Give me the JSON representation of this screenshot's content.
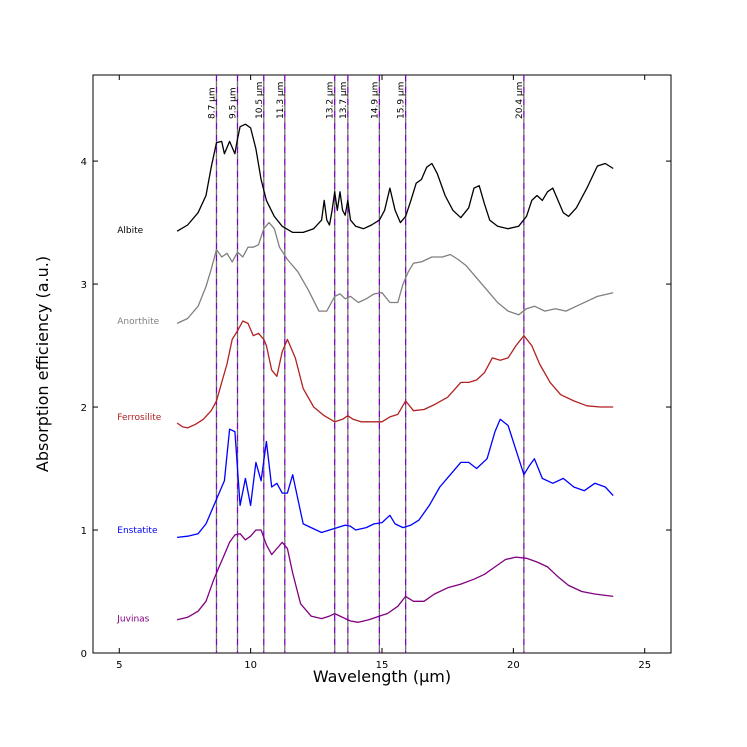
{
  "chart_data": {
    "type": "line",
    "title": "",
    "xlabel": "Wavelength (μm)",
    "ylabel": "Absorption efficiency (a.u.)",
    "xlim": [
      4,
      26
    ],
    "ylim": [
      0,
      4.7
    ],
    "x_ticks": [
      5,
      10,
      15,
      20,
      25
    ],
    "y_ticks": [
      0,
      1,
      2,
      3,
      4
    ],
    "grid": false,
    "legend": "none",
    "series_labels_position": "inline-left",
    "vertical_lines": [
      {
        "x": 8.7,
        "label": "8.7 μm"
      },
      {
        "x": 9.5,
        "label": "9.5 μm"
      },
      {
        "x": 10.5,
        "label": "10.5 μm"
      },
      {
        "x": 11.3,
        "label": "11.3 μm"
      },
      {
        "x": 13.2,
        "label": "13.2 μm"
      },
      {
        "x": 13.7,
        "label": "13.7 μm"
      },
      {
        "x": 14.9,
        "label": "14.9 μm"
      },
      {
        "x": 15.9,
        "label": "15.9 μm"
      },
      {
        "x": 20.4,
        "label": "20.4 μm"
      }
    ],
    "vertical_line_colors": [
      "#7f00bf",
      "#000000"
    ],
    "series": [
      {
        "name": "Albite",
        "color": "#000000",
        "label_x": 5,
        "label_y": 3.44,
        "x": [
          7.2,
          7.6,
          8.0,
          8.3,
          8.5,
          8.7,
          8.9,
          9.0,
          9.2,
          9.4,
          9.5,
          9.6,
          9.8,
          10.0,
          10.2,
          10.4,
          10.6,
          10.9,
          11.2,
          11.6,
          12.0,
          12.4,
          12.7,
          12.8,
          12.9,
          13.0,
          13.1,
          13.2,
          13.3,
          13.4,
          13.5,
          13.6,
          13.7,
          13.8,
          14.0,
          14.3,
          14.6,
          14.9,
          15.1,
          15.3,
          15.5,
          15.7,
          15.9,
          16.1,
          16.3,
          16.5,
          16.7,
          16.9,
          17.1,
          17.4,
          17.7,
          18.0,
          18.3,
          18.5,
          18.7,
          18.9,
          19.1,
          19.4,
          19.8,
          20.2,
          20.5,
          20.7,
          20.9,
          21.1,
          21.3,
          21.5,
          21.7,
          21.9,
          22.1,
          22.4,
          22.8,
          23.2,
          23.5,
          23.8
        ],
        "y": [
          3.43,
          3.48,
          3.58,
          3.72,
          3.95,
          4.15,
          4.16,
          4.06,
          4.16,
          4.06,
          4.18,
          4.28,
          4.3,
          4.27,
          4.1,
          3.85,
          3.68,
          3.55,
          3.47,
          3.42,
          3.42,
          3.45,
          3.52,
          3.68,
          3.52,
          3.48,
          3.6,
          3.75,
          3.6,
          3.75,
          3.6,
          3.56,
          3.68,
          3.52,
          3.47,
          3.45,
          3.48,
          3.52,
          3.6,
          3.78,
          3.6,
          3.5,
          3.55,
          3.68,
          3.82,
          3.85,
          3.95,
          3.98,
          3.9,
          3.72,
          3.6,
          3.54,
          3.62,
          3.78,
          3.8,
          3.65,
          3.52,
          3.47,
          3.45,
          3.47,
          3.55,
          3.68,
          3.72,
          3.68,
          3.75,
          3.78,
          3.68,
          3.58,
          3.55,
          3.62,
          3.78,
          3.96,
          3.98,
          3.94
        ]
      },
      {
        "name": "Anorthite",
        "color": "#808080",
        "label_x": 5,
        "label_y": 2.7,
        "x": [
          7.2,
          7.6,
          8.0,
          8.3,
          8.5,
          8.7,
          8.9,
          9.1,
          9.3,
          9.5,
          9.7,
          9.9,
          10.1,
          10.3,
          10.5,
          10.7,
          10.9,
          11.1,
          11.4,
          11.8,
          12.2,
          12.6,
          12.9,
          13.2,
          13.4,
          13.6,
          13.8,
          14.1,
          14.4,
          14.7,
          15.0,
          15.3,
          15.6,
          15.8,
          16.0,
          16.2,
          16.5,
          16.9,
          17.3,
          17.6,
          17.9,
          18.2,
          18.6,
          19.0,
          19.4,
          19.8,
          20.2,
          20.5,
          20.8,
          21.2,
          21.6,
          22.0,
          22.4,
          22.8,
          23.2,
          23.8
        ],
        "y": [
          2.68,
          2.72,
          2.82,
          2.98,
          3.12,
          3.28,
          3.22,
          3.25,
          3.18,
          3.26,
          3.22,
          3.3,
          3.3,
          3.32,
          3.45,
          3.5,
          3.45,
          3.3,
          3.2,
          3.1,
          2.95,
          2.78,
          2.78,
          2.9,
          2.92,
          2.88,
          2.9,
          2.85,
          2.88,
          2.92,
          2.93,
          2.85,
          2.85,
          3.0,
          3.1,
          3.17,
          3.18,
          3.22,
          3.22,
          3.24,
          3.2,
          3.15,
          3.05,
          2.95,
          2.85,
          2.78,
          2.75,
          2.8,
          2.82,
          2.78,
          2.8,
          2.78,
          2.82,
          2.86,
          2.9,
          2.93
        ]
      },
      {
        "name": "Ferrosilite",
        "color": "#b22222",
        "label_x": 5,
        "label_y": 1.92,
        "x": [
          7.2,
          7.4,
          7.6,
          7.9,
          8.2,
          8.5,
          8.7,
          8.9,
          9.1,
          9.3,
          9.5,
          9.7,
          9.9,
          10.1,
          10.3,
          10.5,
          10.6,
          10.8,
          11.0,
          11.2,
          11.4,
          11.7,
          12.0,
          12.4,
          12.8,
          13.2,
          13.5,
          13.7,
          13.9,
          14.2,
          14.6,
          15.0,
          15.3,
          15.6,
          15.9,
          16.2,
          16.6,
          17.0,
          17.5,
          18.0,
          18.3,
          18.6,
          18.9,
          19.2,
          19.5,
          19.8,
          20.1,
          20.4,
          20.7,
          21.0,
          21.4,
          21.8,
          22.3,
          22.8,
          23.3,
          23.8
        ],
        "y": [
          1.87,
          1.84,
          1.83,
          1.86,
          1.9,
          1.97,
          2.05,
          2.2,
          2.35,
          2.55,
          2.62,
          2.7,
          2.68,
          2.58,
          2.6,
          2.55,
          2.5,
          2.3,
          2.25,
          2.45,
          2.55,
          2.4,
          2.15,
          2.0,
          1.93,
          1.88,
          1.9,
          1.93,
          1.9,
          1.88,
          1.88,
          1.88,
          1.92,
          1.94,
          2.05,
          1.97,
          1.98,
          2.02,
          2.08,
          2.2,
          2.2,
          2.22,
          2.28,
          2.4,
          2.38,
          2.4,
          2.5,
          2.58,
          2.5,
          2.35,
          2.2,
          2.1,
          2.05,
          2.01,
          2.0,
          2.0
        ]
      },
      {
        "name": "Enstatite",
        "color": "#0000ff",
        "label_x": 5,
        "label_y": 1.0,
        "x": [
          7.2,
          7.6,
          8.0,
          8.3,
          8.6,
          8.8,
          9.0,
          9.2,
          9.4,
          9.6,
          9.8,
          10.0,
          10.2,
          10.4,
          10.6,
          10.8,
          11.0,
          11.2,
          11.4,
          11.6,
          11.8,
          12.0,
          12.3,
          12.7,
          13.0,
          13.3,
          13.6,
          13.8,
          14.0,
          14.4,
          14.7,
          15.0,
          15.3,
          15.5,
          15.8,
          16.1,
          16.4,
          16.8,
          17.2,
          17.6,
          18.0,
          18.3,
          18.6,
          19.0,
          19.3,
          19.5,
          19.8,
          20.1,
          20.4,
          20.6,
          20.8,
          21.1,
          21.5,
          21.9,
          22.3,
          22.7,
          23.1,
          23.5,
          23.8
        ],
        "y": [
          0.94,
          0.95,
          0.97,
          1.05,
          1.2,
          1.3,
          1.4,
          1.82,
          1.8,
          1.2,
          1.42,
          1.2,
          1.55,
          1.4,
          1.72,
          1.35,
          1.38,
          1.3,
          1.3,
          1.45,
          1.25,
          1.05,
          1.02,
          0.98,
          1.0,
          1.02,
          1.04,
          1.03,
          1.0,
          1.02,
          1.05,
          1.06,
          1.12,
          1.05,
          1.02,
          1.04,
          1.08,
          1.2,
          1.35,
          1.45,
          1.55,
          1.55,
          1.5,
          1.58,
          1.8,
          1.9,
          1.85,
          1.65,
          1.45,
          1.52,
          1.58,
          1.42,
          1.38,
          1.42,
          1.35,
          1.32,
          1.38,
          1.35,
          1.28
        ]
      },
      {
        "name": "Juvinas",
        "color": "#800080",
        "label_x": 5,
        "label_y": 0.28,
        "x": [
          7.2,
          7.6,
          8.0,
          8.3,
          8.6,
          8.8,
          9.0,
          9.2,
          9.4,
          9.6,
          9.8,
          10.0,
          10.2,
          10.4,
          10.6,
          10.8,
          11.0,
          11.2,
          11.4,
          11.6,
          11.9,
          12.3,
          12.7,
          13.0,
          13.2,
          13.4,
          13.6,
          13.8,
          14.1,
          14.5,
          14.9,
          15.2,
          15.6,
          15.9,
          16.2,
          16.6,
          17.0,
          17.5,
          18.0,
          18.5,
          18.9,
          19.3,
          19.7,
          20.1,
          20.5,
          20.9,
          21.3,
          21.7,
          22.1,
          22.6,
          23.1,
          23.8
        ],
        "y": [
          0.27,
          0.29,
          0.34,
          0.42,
          0.6,
          0.7,
          0.8,
          0.9,
          0.96,
          0.97,
          0.92,
          0.95,
          1.0,
          1.0,
          0.88,
          0.8,
          0.85,
          0.9,
          0.85,
          0.65,
          0.4,
          0.3,
          0.28,
          0.3,
          0.32,
          0.3,
          0.28,
          0.26,
          0.25,
          0.27,
          0.3,
          0.32,
          0.38,
          0.46,
          0.42,
          0.42,
          0.48,
          0.53,
          0.56,
          0.6,
          0.64,
          0.7,
          0.76,
          0.78,
          0.77,
          0.74,
          0.7,
          0.62,
          0.55,
          0.5,
          0.48,
          0.46
        ]
      }
    ]
  }
}
